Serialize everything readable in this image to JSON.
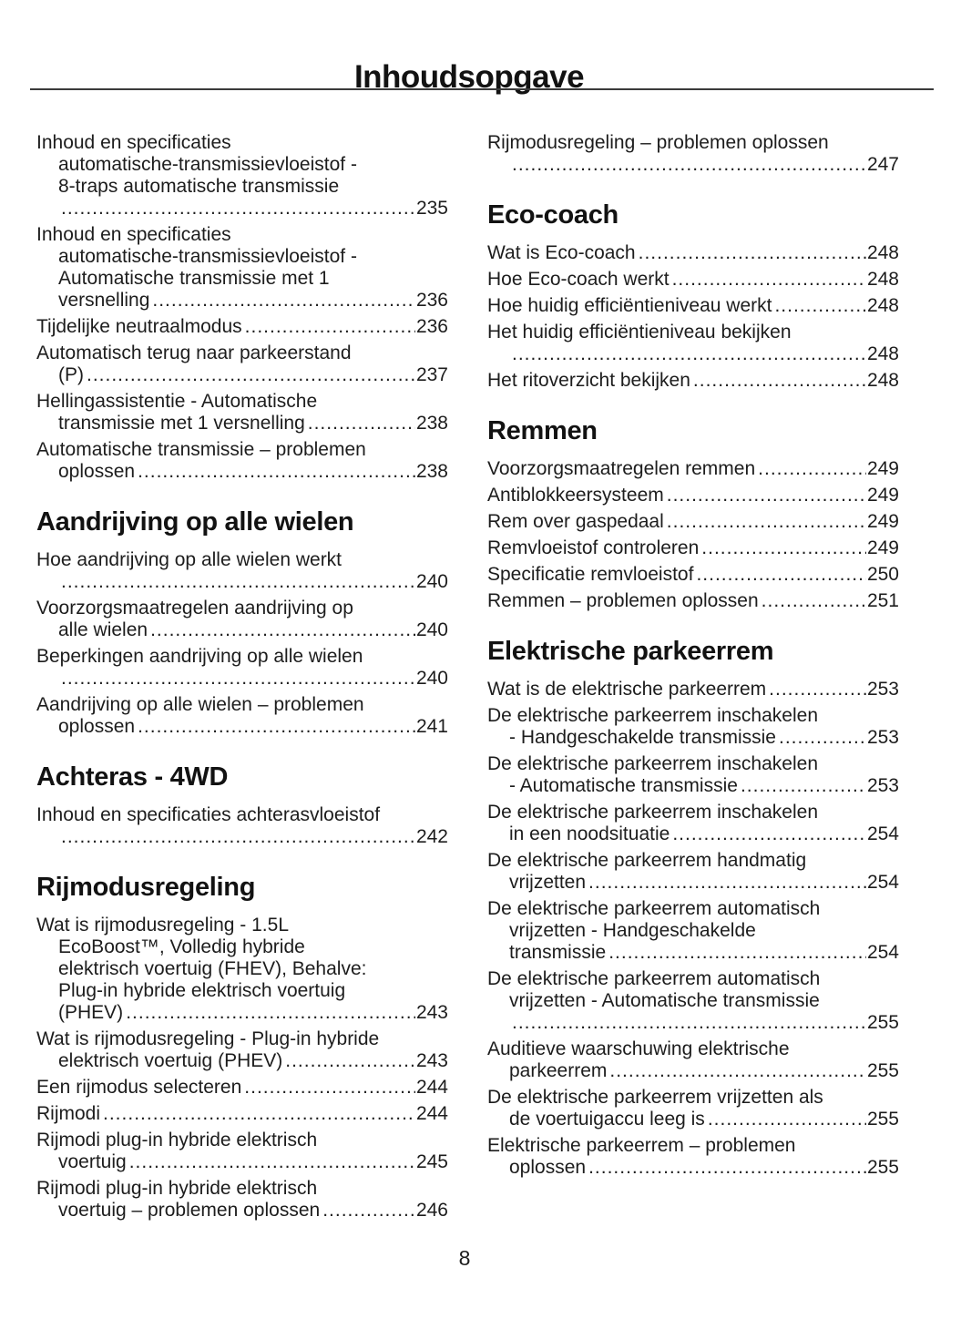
{
  "page": {
    "title": "Inhoudsopgave",
    "page_number": "8"
  },
  "colors": {
    "text": "#1d1d1d",
    "heading": "#121212",
    "rule": "#3a3a3a",
    "background": "#ffffff"
  },
  "columns": [
    {
      "name": "left",
      "blocks": [
        {
          "heading": null,
          "entries": [
            {
              "pre": [
                "Inhoud en specificaties",
                "automatische-transmissievloeistof -",
                "8-traps automatische transmissie"
              ],
              "last": "",
              "page": "235"
            },
            {
              "pre": [
                "Inhoud en specificaties",
                "automatische-transmissievloeistof -",
                "Automatische transmissie met 1"
              ],
              "last": "versnelling",
              "page": "236"
            },
            {
              "pre": [],
              "last": "Tijdelijke neutraalmodus",
              "page": "236"
            },
            {
              "pre": [
                "Automatisch terug naar parkeerstand"
              ],
              "last": "(P)",
              "page": "237"
            },
            {
              "pre": [
                "Hellingassistentie - Automatische"
              ],
              "last": "transmissie met 1 versnelling",
              "page": "238"
            },
            {
              "pre": [
                "Automatische transmissie – problemen"
              ],
              "last": "oplossen",
              "page": "238"
            }
          ]
        },
        {
          "heading": "Aandrijving op alle wielen",
          "entries": [
            {
              "pre": [
                "Hoe aandrijving op alle wielen werkt"
              ],
              "last": "",
              "page": "240"
            },
            {
              "pre": [
                "Voorzorgsmaatregelen aandrijving op"
              ],
              "last": "alle wielen",
              "page": "240"
            },
            {
              "pre": [
                "Beperkingen aandrijving op alle wielen"
              ],
              "last": "",
              "page": "240"
            },
            {
              "pre": [
                "Aandrijving op alle wielen – problemen"
              ],
              "last": "oplossen",
              "page": "241"
            }
          ]
        },
        {
          "heading": "Achteras - 4WD",
          "entries": [
            {
              "pre": [
                "Inhoud en specificaties achterasvloeistof"
              ],
              "last": "",
              "page": "242"
            }
          ]
        },
        {
          "heading": "Rijmodusregeling",
          "entries": [
            {
              "pre": [
                "Wat is rijmodusregeling - 1.5L",
                "EcoBoost™, Volledig hybride",
                "elektrisch voertuig (FHEV), Behalve:",
                "Plug-in hybride elektrisch voertuig"
              ],
              "last": "(PHEV)",
              "page": "243"
            },
            {
              "pre": [
                "Wat is rijmodusregeling - Plug-in hybride"
              ],
              "last": "elektrisch voertuig (PHEV)",
              "page": "243"
            },
            {
              "pre": [],
              "last": "Een rijmodus selecteren",
              "page": "244"
            },
            {
              "pre": [],
              "last": "Rijmodi",
              "page": "244"
            },
            {
              "pre": [
                "Rijmodi plug-in hybride elektrisch"
              ],
              "last": "voertuig",
              "page": "245"
            },
            {
              "pre": [
                "Rijmodi plug-in hybride elektrisch"
              ],
              "last": "voertuig – problemen oplossen",
              "page": "246"
            }
          ]
        }
      ]
    },
    {
      "name": "right",
      "blocks": [
        {
          "heading": null,
          "entries": [
            {
              "pre": [
                "Rijmodusregeling – problemen oplossen"
              ],
              "last": "",
              "page": "247"
            }
          ]
        },
        {
          "heading": "Eco-coach",
          "entries": [
            {
              "pre": [],
              "last": "Wat is Eco-coach",
              "page": "248"
            },
            {
              "pre": [],
              "last": "Hoe Eco-coach werkt",
              "page": "248"
            },
            {
              "pre": [],
              "last": "Hoe huidig efficiëntieniveau werkt",
              "page": "248"
            },
            {
              "pre": [
                "Het huidig efficiëntieniveau bekijken"
              ],
              "last": "",
              "page": "248"
            },
            {
              "pre": [],
              "last": "Het ritoverzicht bekijken",
              "page": "248"
            }
          ]
        },
        {
          "heading": "Remmen",
          "entries": [
            {
              "pre": [],
              "last": "Voorzorgsmaatregelen remmen",
              "page": "249"
            },
            {
              "pre": [],
              "last": "Antiblokkeersysteem",
              "page": "249"
            },
            {
              "pre": [],
              "last": "Rem over gaspedaal",
              "page": "249"
            },
            {
              "pre": [],
              "last": "Remvloeistof controleren",
              "page": "249"
            },
            {
              "pre": [],
              "last": "Specificatie remvloeistof",
              "page": "250"
            },
            {
              "pre": [],
              "last": "Remmen – problemen oplossen",
              "page": "251"
            }
          ]
        },
        {
          "heading": "Elektrische parkeerrem",
          "entries": [
            {
              "pre": [],
              "last": "Wat is de elektrische parkeerrem",
              "page": "253"
            },
            {
              "pre": [
                "De elektrische parkeerrem inschakelen"
              ],
              "last": "- Handgeschakelde transmissie",
              "page": "253"
            },
            {
              "pre": [
                "De elektrische parkeerrem inschakelen"
              ],
              "last": "- Automatische transmissie",
              "page": "253"
            },
            {
              "pre": [
                "De elektrische parkeerrem inschakelen"
              ],
              "last": "in een noodsituatie",
              "page": "254"
            },
            {
              "pre": [
                "De elektrische parkeerrem handmatig"
              ],
              "last": "vrijzetten",
              "page": "254"
            },
            {
              "pre": [
                "De elektrische parkeerrem automatisch",
                "vrijzetten - Handgeschakelde"
              ],
              "last": "transmissie",
              "page": "254"
            },
            {
              "pre": [
                "De elektrische parkeerrem automatisch",
                "vrijzetten - Automatische transmissie"
              ],
              "last": "",
              "page": "255"
            },
            {
              "pre": [
                "Auditieve waarschuwing elektrische"
              ],
              "last": "parkeerrem",
              "page": "255"
            },
            {
              "pre": [
                "De elektrische parkeerrem vrijzetten als"
              ],
              "last": "de voertuigaccu leeg is",
              "page": "255"
            },
            {
              "pre": [
                "Elektrische parkeerrem – problemen"
              ],
              "last": "oplossen",
              "page": "255"
            }
          ]
        }
      ]
    }
  ]
}
